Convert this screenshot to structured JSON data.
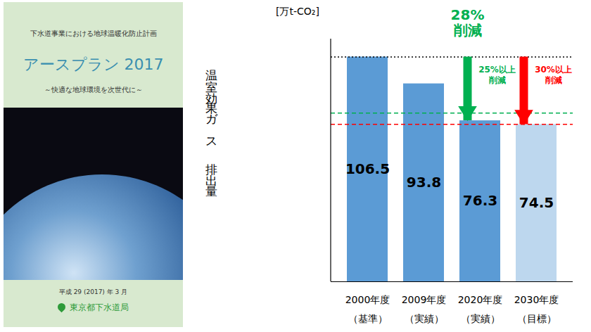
{
  "cover": {
    "subtitle_top": "下水道事業における地球温暖化防止計画",
    "title": "アースプラン 2017",
    "tagline": "～快適な地球環境を次世代に～",
    "date": "平成 29 (2017) 年 3 月",
    "publisher": "東京都下水道局"
  },
  "chart_data": {
    "type": "bar",
    "y_label": "温室効果ガス排出量",
    "y_unit": "[万t-CO₂]",
    "categories": [
      "2000年度\n（基準）",
      "2009年度\n（実績）",
      "2020年度\n（実績）",
      "2030年度\n（目標）"
    ],
    "values": [
      106.5,
      93.8,
      76.3,
      74.5
    ],
    "colors": [
      "#5b9bd5",
      "#5b9bd5",
      "#5b9bd5",
      "#bdd7ee"
    ],
    "ylim": [
      0,
      115
    ],
    "tick_labels": "x",
    "data_labels": true,
    "reference_lines": [
      {
        "value": 106.5,
        "color": "#000000",
        "line_style": "dotted"
      },
      {
        "value": 79.9,
        "color": "#00b050",
        "line_style": "dashed"
      },
      {
        "value": 74.6,
        "color": "#ff0000",
        "line_style": "dashed"
      }
    ],
    "arrows": [
      {
        "category": "2020年度\n（実績）",
        "from": 106.5,
        "to": 76.3,
        "color": "#00b050",
        "label": "25%以上\n削減"
      },
      {
        "category": "2030年度\n（目標）",
        "from": 106.5,
        "to": 74.5,
        "color": "#ff0000",
        "label": "30%以上\n削減"
      }
    ],
    "annotations": [
      {
        "text": "28%\n削減",
        "color": "#00b050",
        "category": "2020年度\n（実績）"
      }
    ]
  }
}
